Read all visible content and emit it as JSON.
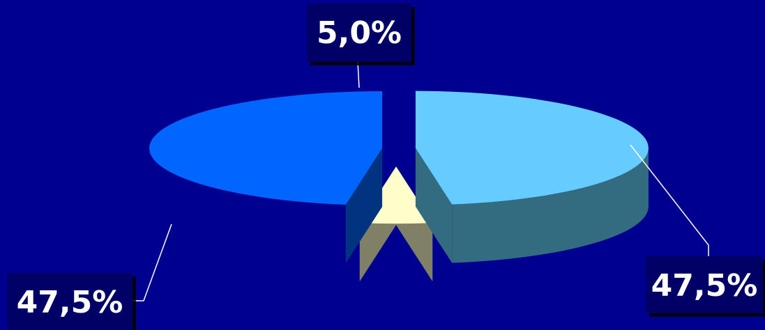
{
  "chart_data": {
    "type": "pie",
    "title": "",
    "slices": [
      {
        "value": 47.5,
        "label": "47,5%",
        "color": "#66ccff",
        "side_color": "#336b80"
      },
      {
        "value": 5.0,
        "label": "5,0%",
        "color": "#ffffcc",
        "side_color": "#808066"
      },
      {
        "value": 47.5,
        "label": "47,5%",
        "color": "#0066ff",
        "side_color": "#003380"
      }
    ],
    "background": "#000090",
    "style": "3d-exploded"
  }
}
